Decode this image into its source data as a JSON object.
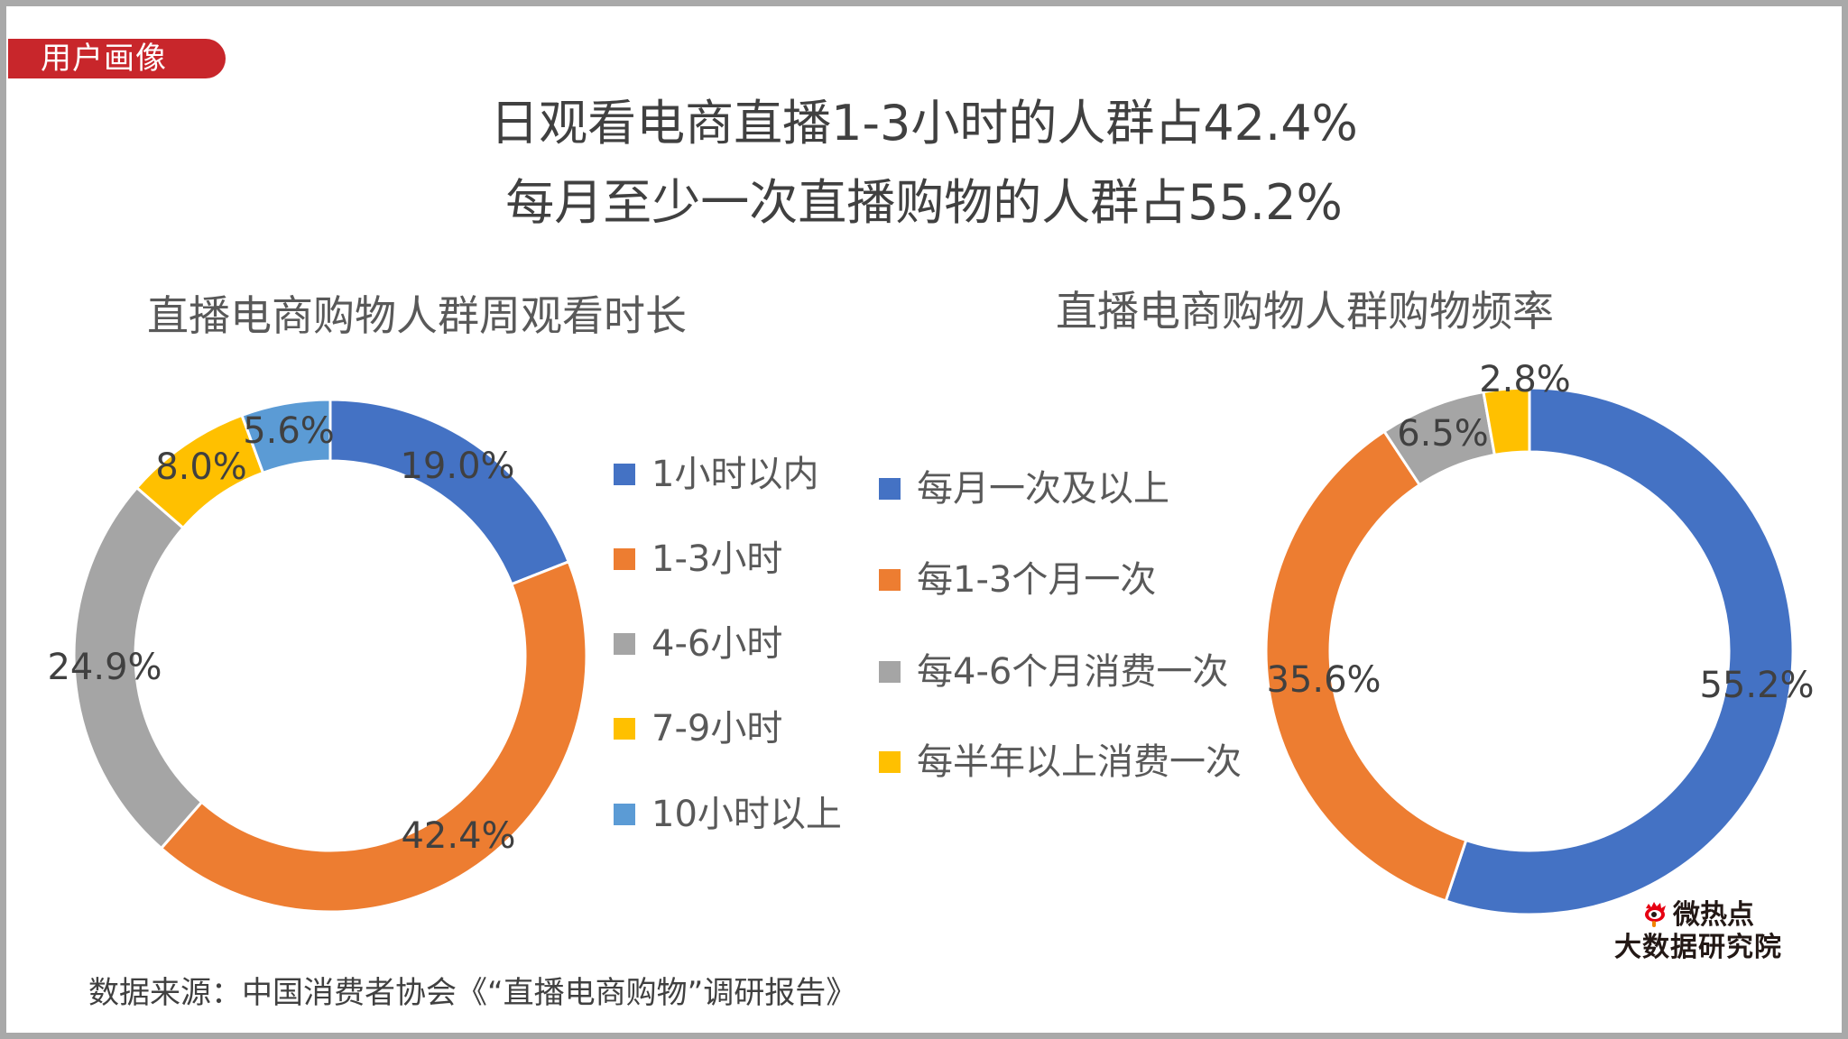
{
  "badge": {
    "label": "用户画像",
    "color": "#c8262b"
  },
  "title": {
    "line1": "日观看电商直播1-3小时的人群占42.4%",
    "line2": "每月至少一次直播购物的人群占55.2%"
  },
  "footer": {
    "source": "数据来源：中国消费者协会《“直播电商购物”调研报告》"
  },
  "logo": {
    "line1": "微热点",
    "line2": "大数据研究院",
    "icon": "weibo-eye-icon"
  },
  "left_chart": {
    "title": "直播电商购物人群周观看时长",
    "slices": [
      {
        "label": "1小时以内",
        "value": 19.0,
        "display": "19.0%",
        "color": "#4472c4"
      },
      {
        "label": "1-3小时",
        "value": 42.4,
        "display": "42.4%",
        "color": "#ed7d31"
      },
      {
        "label": "4-6小时",
        "value": 24.9,
        "display": "24.9%",
        "color": "#a5a5a5"
      },
      {
        "label": "7-9小时",
        "value": 8.0,
        "display": "8.0%",
        "color": "#ffc000"
      },
      {
        "label": "10小时以上",
        "value": 5.6,
        "display": "5.6%",
        "color": "#5b9bd5"
      }
    ]
  },
  "right_chart": {
    "title": "直播电商购物人群购物频率",
    "slices": [
      {
        "label": "每月一次及以上",
        "value": 55.2,
        "display": "55.2%",
        "color": "#4472c4"
      },
      {
        "label": "每1-3个月一次",
        "value": 35.6,
        "display": "35.6%",
        "color": "#ed7d31"
      },
      {
        "label": "每4-6个月消费一次",
        "value": 6.5,
        "display": "6.5%",
        "color": "#a5a5a5"
      },
      {
        "label": "每半年以上消费一次",
        "value": 2.8,
        "display": "2.8%",
        "color": "#ffc000"
      }
    ]
  },
  "chart_data": [
    {
      "type": "pie",
      "subtype": "donut",
      "title": "直播电商购物人群周观看时长",
      "categories": [
        "1小时以内",
        "1-3小时",
        "4-6小时",
        "7-9小时",
        "10小时以上"
      ],
      "values": [
        19.0,
        42.4,
        24.9,
        8.0,
        5.6
      ],
      "unit": "%",
      "colors": [
        "#4472c4",
        "#ed7d31",
        "#a5a5a5",
        "#ffc000",
        "#5b9bd5"
      ],
      "legend_position": "right",
      "start_angle": "12 o'clock, clockwise"
    },
    {
      "type": "pie",
      "subtype": "donut",
      "title": "直播电商购物人群购物频率",
      "categories": [
        "每月一次及以上",
        "每1-3个月一次",
        "每4-6个月消费一次",
        "每半年以上消费一次"
      ],
      "values": [
        55.2,
        35.6,
        6.5,
        2.8
      ],
      "unit": "%",
      "colors": [
        "#4472c4",
        "#ed7d31",
        "#a5a5a5",
        "#ffc000"
      ],
      "legend_position": "left",
      "start_angle": "12 o'clock, clockwise"
    }
  ]
}
